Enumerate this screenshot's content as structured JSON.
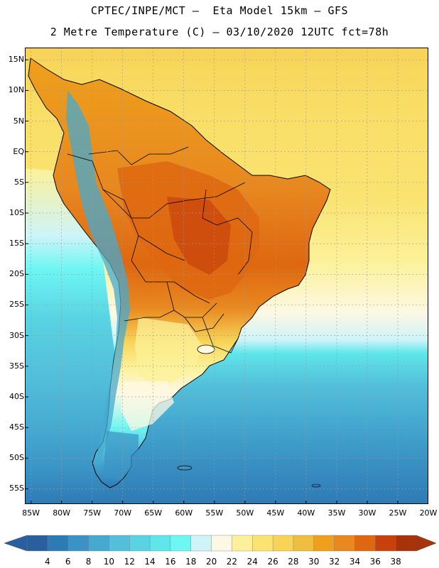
{
  "header": {
    "line1": "CPTEC/INPE/MCT —  Eta Model 15km — GFS",
    "line2": "2 Metre Temperature (C) — 03/10/2020 12UTC fct=78h"
  },
  "map": {
    "lat_labels": [
      "15N",
      "10N",
      "5N",
      "EQ",
      "5S",
      "10S",
      "15S",
      "20S",
      "25S",
      "30S",
      "35S",
      "40S",
      "45S",
      "50S",
      "55S"
    ],
    "lon_labels": [
      "85W",
      "80W",
      "75W",
      "70W",
      "65W",
      "60W",
      "55W",
      "50W",
      "45W",
      "40W",
      "35W",
      "30W",
      "25W",
      "20W"
    ],
    "lat_values": [
      15,
      10,
      5,
      0,
      -5,
      -10,
      -15,
      -20,
      -25,
      -30,
      -35,
      -40,
      -45,
      -50,
      -55
    ],
    "lon_values": [
      -85,
      -80,
      -75,
      -70,
      -65,
      -60,
      -55,
      -50,
      -45,
      -40,
      -35,
      -30,
      -25,
      -20
    ],
    "extent": {
      "lon_min": -86,
      "lon_max": -20,
      "lat_min": -57.5,
      "lat_max": 17
    }
  },
  "colorbar": {
    "labels": [
      "4",
      "6",
      "8",
      "10",
      "12",
      "14",
      "16",
      "18",
      "20",
      "22",
      "24",
      "26",
      "28",
      "30",
      "32",
      "34",
      "36",
      "38"
    ],
    "colors": [
      "#2a5f9f",
      "#2e7ab5",
      "#3a93c4",
      "#45a9d0",
      "#53bfda",
      "#59d3e2",
      "#5ee6ea",
      "#6ef6f3",
      "#cef4f8",
      "#fdf8e3",
      "#fcf19a",
      "#fae371",
      "#f7d458",
      "#efbe40",
      "#eea01c",
      "#e8881f",
      "#de6710",
      "#c8410c",
      "#a83209"
    ],
    "low_arrow_color": "#2a5f9f",
    "high_arrow_color": "#a83209"
  }
}
